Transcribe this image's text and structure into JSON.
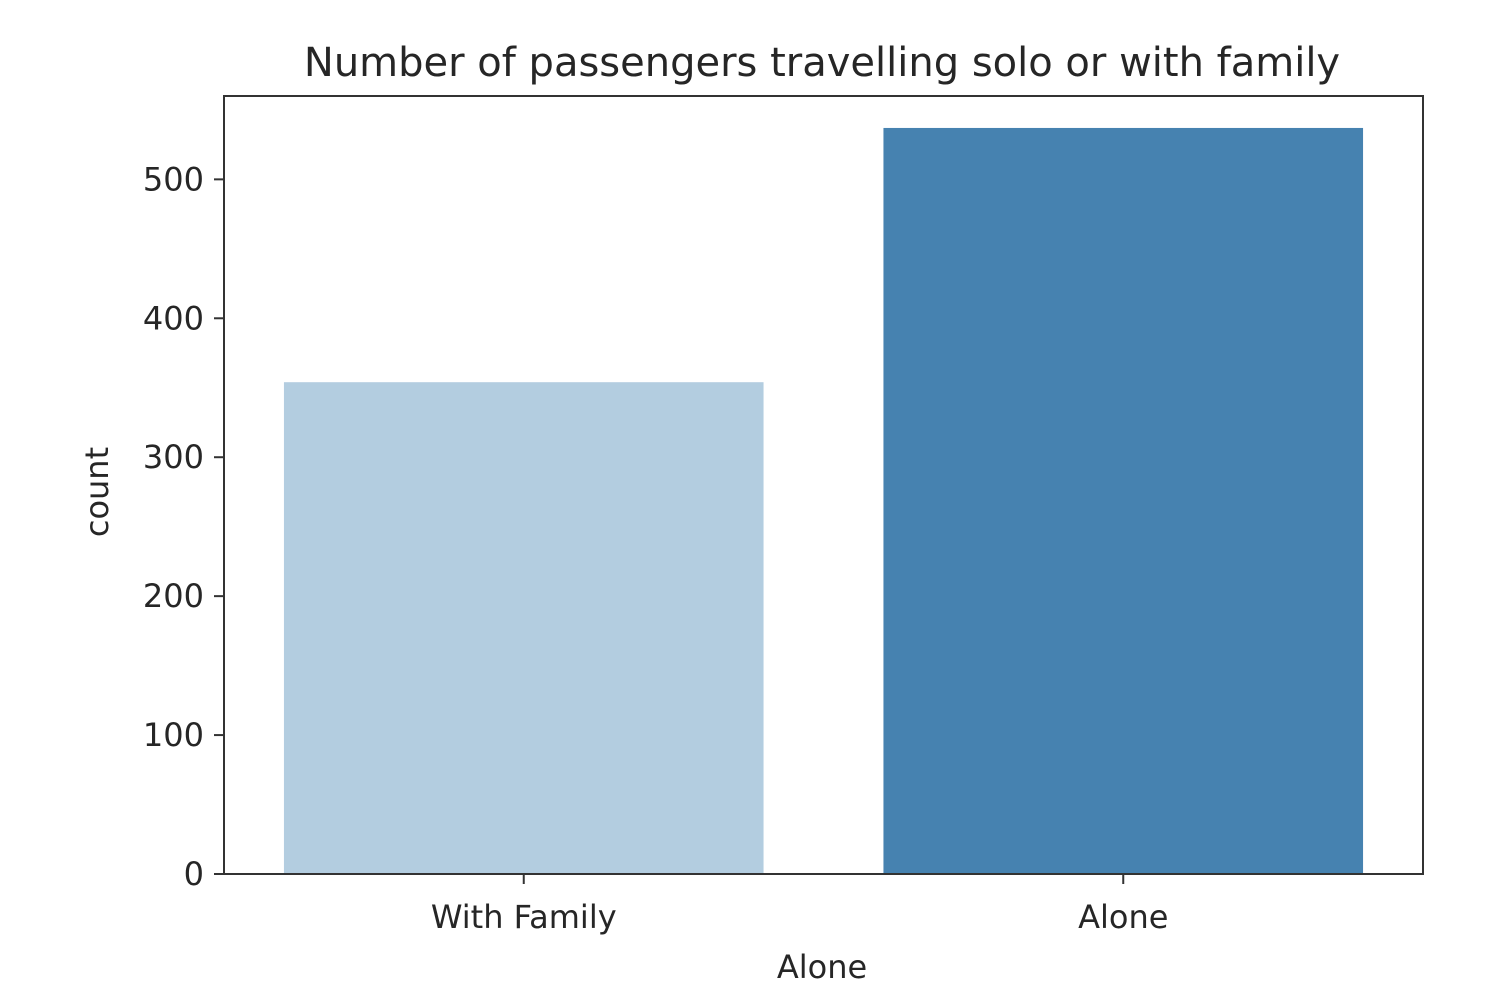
{
  "chart_data": {
    "type": "bar",
    "title": "Number of passengers travelling solo or with family",
    "xlabel": "Alone",
    "ylabel": "count",
    "categories": [
      "With Family",
      "Alone"
    ],
    "values": [
      354,
      537
    ],
    "bar_colors": [
      "#b3cde0",
      "#4682b0"
    ],
    "ylim": [
      0,
      560
    ],
    "yticks": [
      0,
      100,
      200,
      300,
      400,
      500
    ],
    "grid": false,
    "legend": "none"
  }
}
